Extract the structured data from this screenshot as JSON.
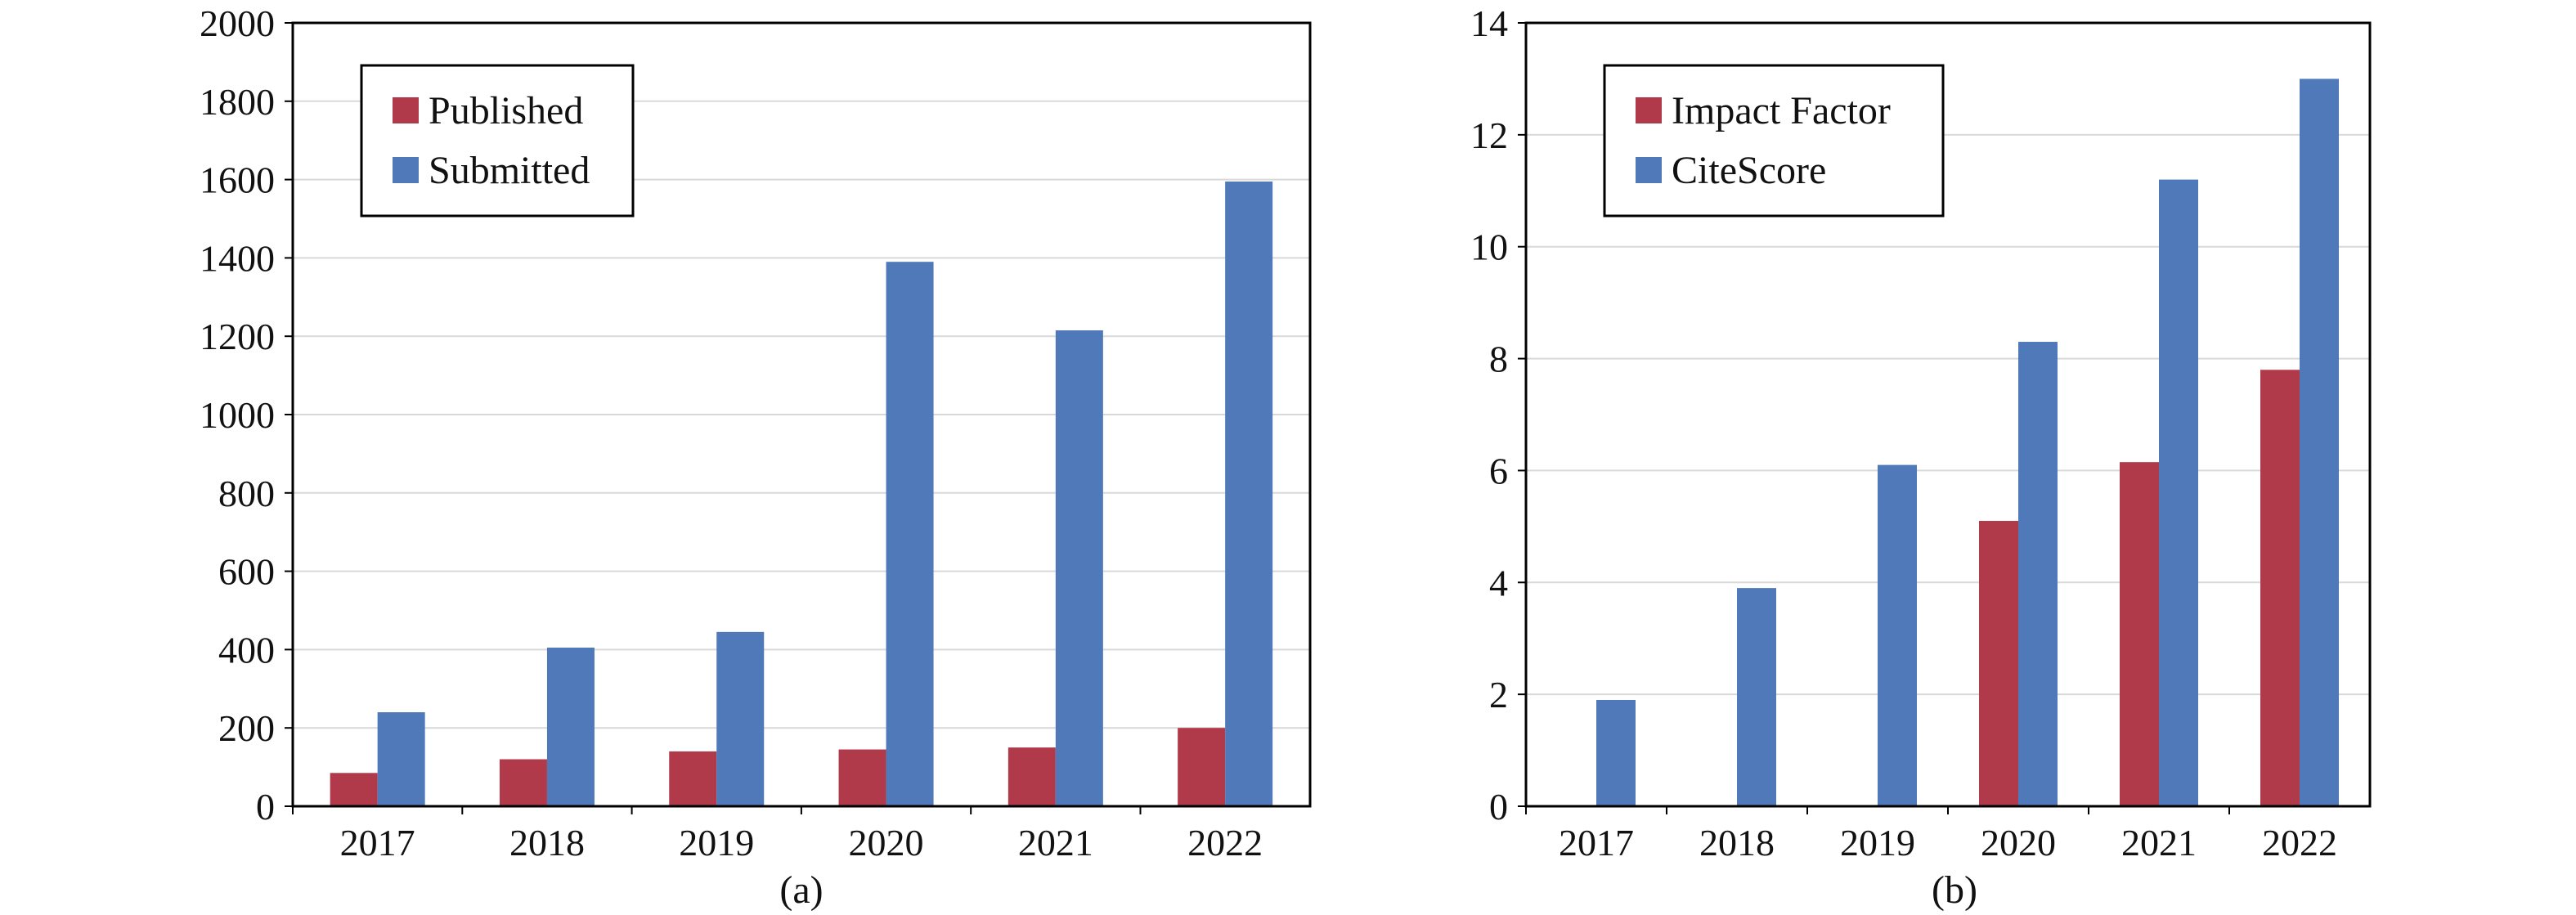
{
  "colors": {
    "red": "#B03A4A",
    "blue": "#4F79B8",
    "grid": "#d9d9d9",
    "frame": "#000000"
  },
  "chart_data": [
    {
      "type": "bar",
      "caption": "(a)",
      "categories": [
        "2017",
        "2018",
        "2019",
        "2020",
        "2021",
        "2022"
      ],
      "series": [
        {
          "name": "Published",
          "color": "#B03A4A",
          "values": [
            85,
            120,
            140,
            145,
            150,
            200
          ]
        },
        {
          "name": "Submitted",
          "color": "#4F79B8",
          "values": [
            240,
            405,
            445,
            1390,
            1215,
            1595
          ]
        }
      ],
      "ylim": [
        0,
        2000
      ],
      "yticks": [
        0,
        200,
        400,
        600,
        800,
        1000,
        1200,
        1400,
        1600,
        1800,
        2000
      ],
      "grid": "horizontal",
      "legend": "top-left"
    },
    {
      "type": "bar",
      "caption": "(b)",
      "categories": [
        "2017",
        "2018",
        "2019",
        "2020",
        "2021",
        "2022"
      ],
      "series": [
        {
          "name": "Impact Factor",
          "color": "#B03A4A",
          "values": [
            null,
            null,
            null,
            5.1,
            6.15,
            7.8
          ]
        },
        {
          "name": "CiteScore",
          "color": "#4F79B8",
          "values": [
            1.9,
            3.9,
            6.1,
            8.3,
            11.2,
            13.0
          ]
        }
      ],
      "ylim": [
        0,
        14
      ],
      "yticks": [
        0,
        2,
        4,
        6,
        8,
        10,
        12,
        14
      ],
      "grid": "horizontal",
      "legend": "top-left"
    }
  ]
}
